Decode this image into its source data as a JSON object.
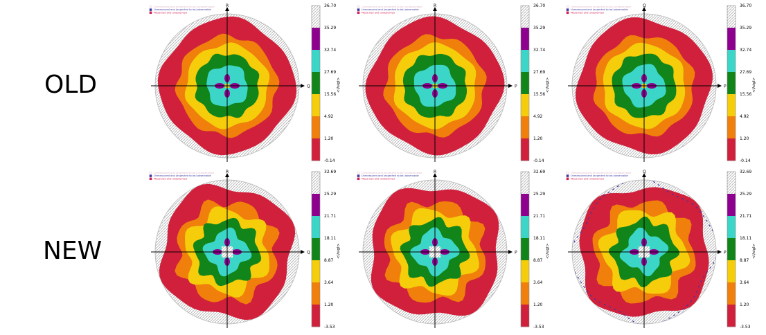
{
  "row_labels": [
    "OLD",
    "NEW"
  ],
  "legend_items": [
    {
      "text": "Unmeasured and (expected to be) unobservable",
      "color": "#e2bcc8"
    },
    {
      "text": "Unmeasured and (expected to be) observable",
      "color": "#3a3aa8"
    },
    {
      "text": "Measured and unobserved",
      "color": "#d81b50"
    }
  ],
  "colorbar_title": "<I/sigI>",
  "colors": {
    "red": "#d0203c",
    "orange": "#f07f0c",
    "yellow": "#f5cd0a",
    "green": "#11841a",
    "cyan": "#3cd6c8",
    "purple": "#8e008e",
    "gray": "#c8c8c8",
    "blue": "#3a3aa8"
  },
  "chart_data": [
    {
      "type": "heatmap",
      "row": "OLD",
      "h_axis": "Q",
      "v_axis": "R",
      "colorbar_ticks": [
        "36.70",
        "35.29",
        "32.74",
        "27.69",
        "15.56",
        "4.92",
        "1.20",
        "-0.14"
      ]
    },
    {
      "type": "heatmap",
      "row": "OLD",
      "h_axis": "P",
      "v_axis": "R",
      "colorbar_ticks": [
        "36.70",
        "35.29",
        "32.74",
        "27.69",
        "15.56",
        "4.92",
        "1.20",
        "-0.14"
      ]
    },
    {
      "type": "heatmap",
      "row": "OLD",
      "h_axis": "P",
      "v_axis": "Q",
      "colorbar_ticks": [
        "36.70",
        "35.29",
        "32.74",
        "27.69",
        "15.56",
        "4.92",
        "1.20",
        "-0.14"
      ]
    },
    {
      "type": "heatmap",
      "row": "NEW",
      "h_axis": "Q",
      "v_axis": "R",
      "colorbar_ticks": [
        "32.69",
        "25.29",
        "21.71",
        "18.11",
        "8.87",
        "3.64",
        "1.20",
        "-3.53"
      ]
    },
    {
      "type": "heatmap",
      "row": "NEW",
      "h_axis": "P",
      "v_axis": "R",
      "colorbar_ticks": [
        "32.69",
        "25.29",
        "21.71",
        "18.11",
        "8.87",
        "3.64",
        "1.20",
        "-3.53"
      ]
    },
    {
      "type": "heatmap",
      "row": "NEW",
      "h_axis": "P",
      "v_axis": "Q",
      "colorbar_ticks": [
        "32.69",
        "25.29",
        "21.71",
        "18.11",
        "8.87",
        "3.64",
        "1.20",
        "-3.53"
      ]
    }
  ]
}
